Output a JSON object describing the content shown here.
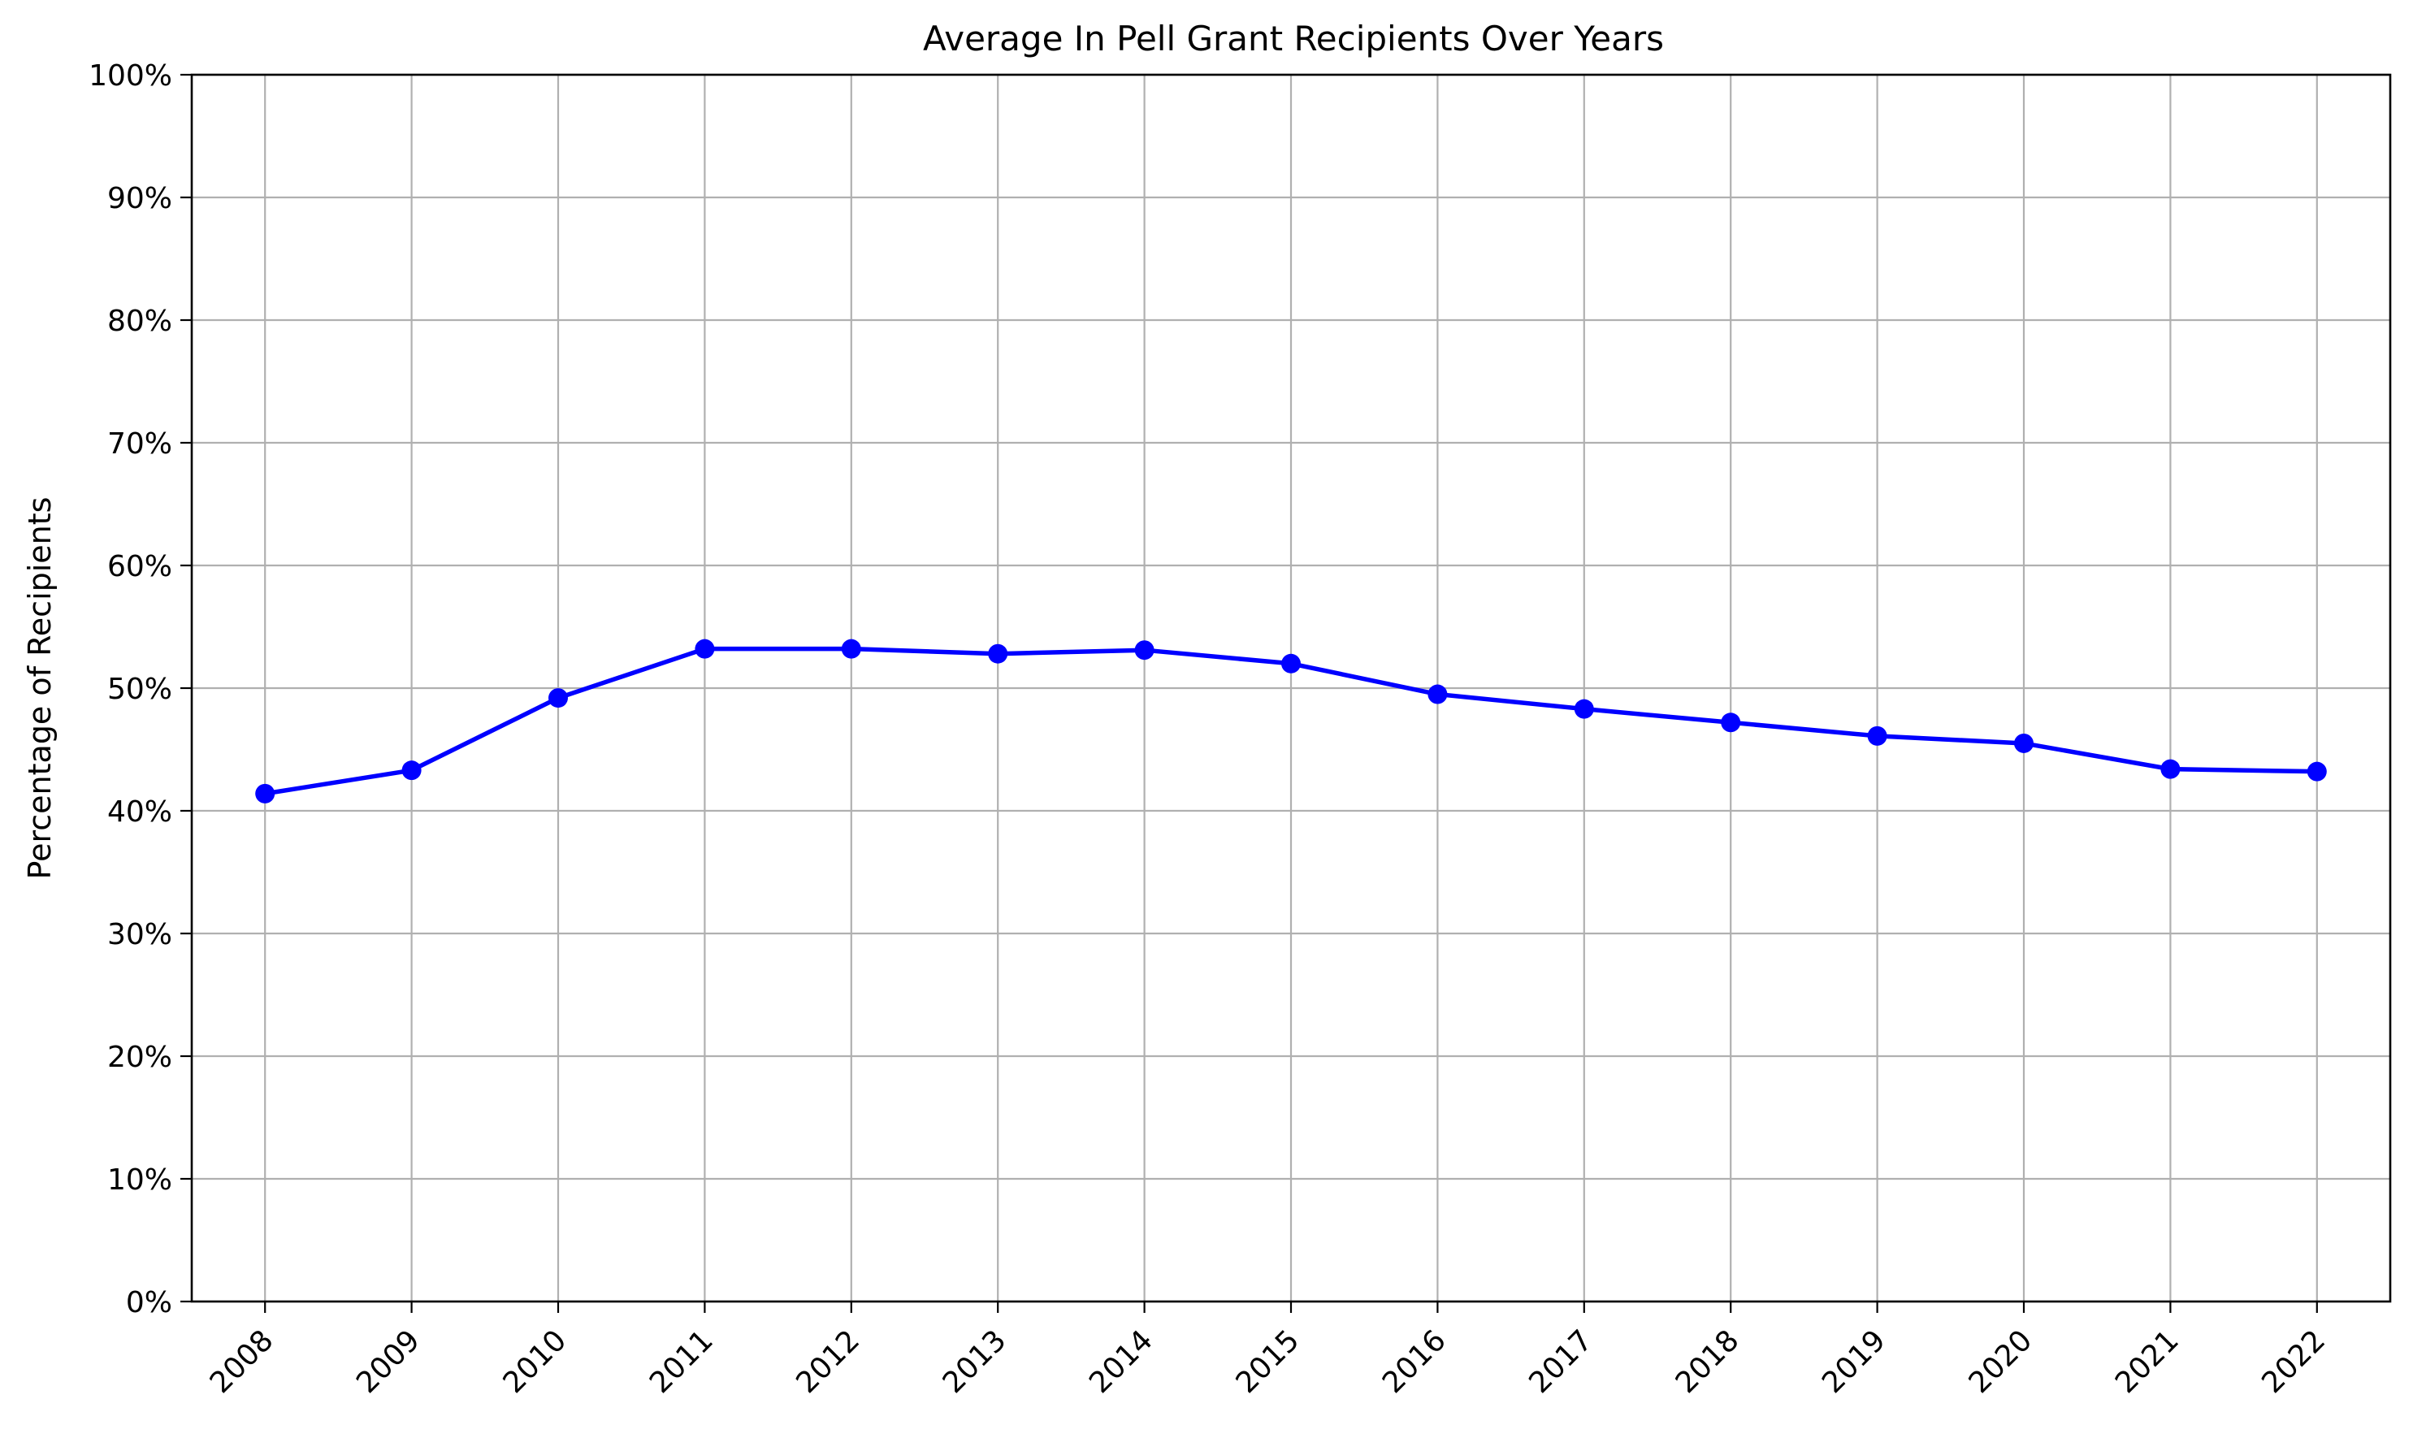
{
  "chart_data": {
    "type": "line",
    "title": "Average In Pell Grant Recipients Over Years",
    "xlabel": "",
    "ylabel": "Percentage of Recipients",
    "x": [
      "2008",
      "2009",
      "2010",
      "2011",
      "2012",
      "2013",
      "2014",
      "2015",
      "2016",
      "2017",
      "2018",
      "2019",
      "2020",
      "2021",
      "2022"
    ],
    "series": [
      {
        "values": [
          41.4,
          43.3,
          49.2,
          53.2,
          53.2,
          52.8,
          53.1,
          52.0,
          49.5,
          48.3,
          47.2,
          46.1,
          45.5,
          43.4,
          43.2
        ]
      }
    ],
    "ylim": [
      0,
      100
    ],
    "yticks": [
      0,
      10,
      20,
      30,
      40,
      50,
      60,
      70,
      80,
      90,
      100
    ],
    "ytick_labels": [
      "0%",
      "10%",
      "20%",
      "30%",
      "40%",
      "50%",
      "60%",
      "70%",
      "80%",
      "90%",
      "100%"
    ],
    "grid": true,
    "line_color": "#0000ff",
    "marker": "circle",
    "grid_color": "#b0b0b0"
  }
}
